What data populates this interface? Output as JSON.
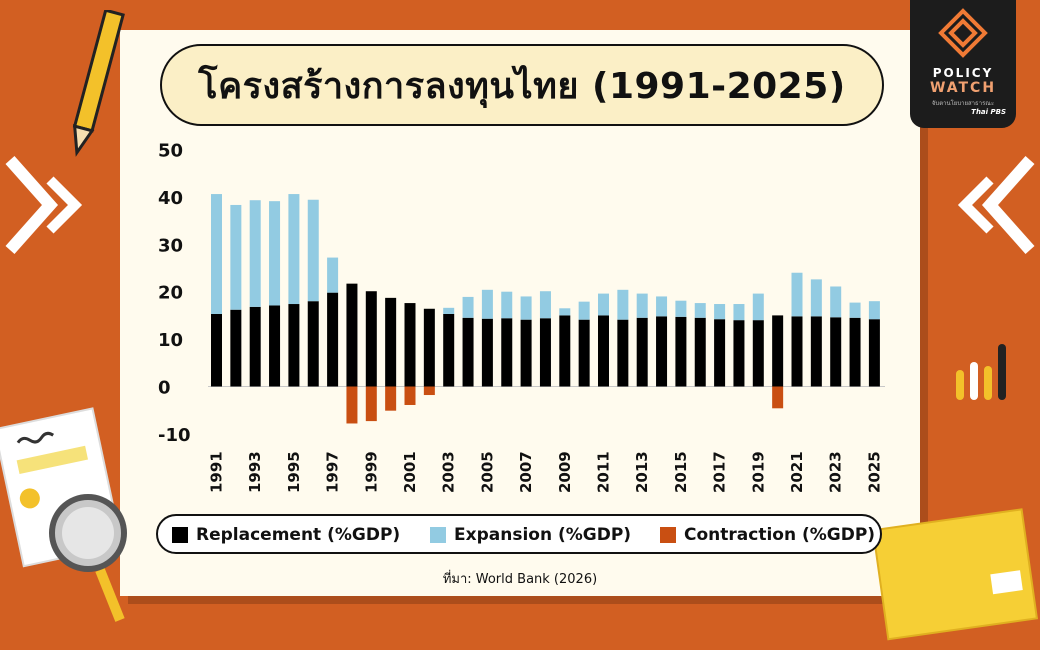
{
  "logo": {
    "line1": "POLICY",
    "line2": "WATCH",
    "line3": "จับตานโยบายสาธารณะ",
    "line4": "Thai PBS"
  },
  "source": "ที่มา: World Bank (2026)",
  "colors": {
    "replacement": "#000000",
    "expansion": "#92cbe2",
    "contraction": "#c94f12",
    "background": "#d25f22"
  },
  "chart_data": {
    "type": "bar",
    "stacked": true,
    "title": "โครงสร้างการลงทุนไทย (1991-2025)",
    "ylim": [
      -10,
      50
    ],
    "yticks": [
      50,
      40,
      30,
      20,
      10,
      0,
      -10
    ],
    "xtick_labels": [
      "1991",
      "1993",
      "1995",
      "1997",
      "1999",
      "2001",
      "2003",
      "2005",
      "2007",
      "2009",
      "2011",
      "2013",
      "2015",
      "2017",
      "2019",
      "2021",
      "2023",
      "2025"
    ],
    "categories": [
      "1991",
      "1992",
      "1993",
      "1994",
      "1995",
      "1996",
      "1997",
      "1998",
      "1999",
      "2000",
      "2001",
      "2002",
      "2003",
      "2004",
      "2005",
      "2006",
      "2007",
      "2008",
      "2009",
      "2010",
      "2011",
      "2012",
      "2013",
      "2014",
      "2015",
      "2016",
      "2017",
      "2018",
      "2019",
      "2020",
      "2021",
      "2022",
      "2023",
      "2024",
      "2025"
    ],
    "legend_position": "bottom",
    "series": [
      {
        "name": "Replacement (%GDP)",
        "color": "#000000",
        "values": [
          15.3,
          16.2,
          16.8,
          17.1,
          17.4,
          18.0,
          19.8,
          21.7,
          20.1,
          18.7,
          17.6,
          16.4,
          15.3,
          14.5,
          14.3,
          14.4,
          14.1,
          14.4,
          15.0,
          14.1,
          15.0,
          14.1,
          14.5,
          14.8,
          14.7,
          14.5,
          14.2,
          14.0,
          14.0,
          15.0,
          14.8,
          14.8,
          14.6,
          14.5,
          14.2
        ]
      },
      {
        "name": "Expansion (%GDP)",
        "color": "#92cbe2",
        "values": [
          25.3,
          22.1,
          22.5,
          22.0,
          23.2,
          21.4,
          7.4,
          0,
          0,
          0,
          0,
          0,
          1.3,
          4.4,
          6.1,
          5.6,
          4.9,
          5.7,
          1.5,
          3.8,
          4.6,
          6.3,
          5.1,
          4.2,
          3.4,
          3.1,
          3.2,
          3.4,
          5.6,
          0,
          9.2,
          7.8,
          6.5,
          3.2,
          3.8
        ]
      },
      {
        "name": "Contraction (%GDP)",
        "color": "#c94f12",
        "values": [
          0,
          0,
          0,
          0,
          0,
          0,
          0,
          -7.8,
          -7.3,
          -5.1,
          -3.9,
          -1.8,
          0,
          0,
          0,
          0,
          0,
          0,
          0,
          0,
          0,
          0,
          0,
          0,
          0,
          0,
          0,
          0,
          0,
          -4.6,
          0,
          0,
          0,
          0,
          0
        ]
      }
    ]
  }
}
